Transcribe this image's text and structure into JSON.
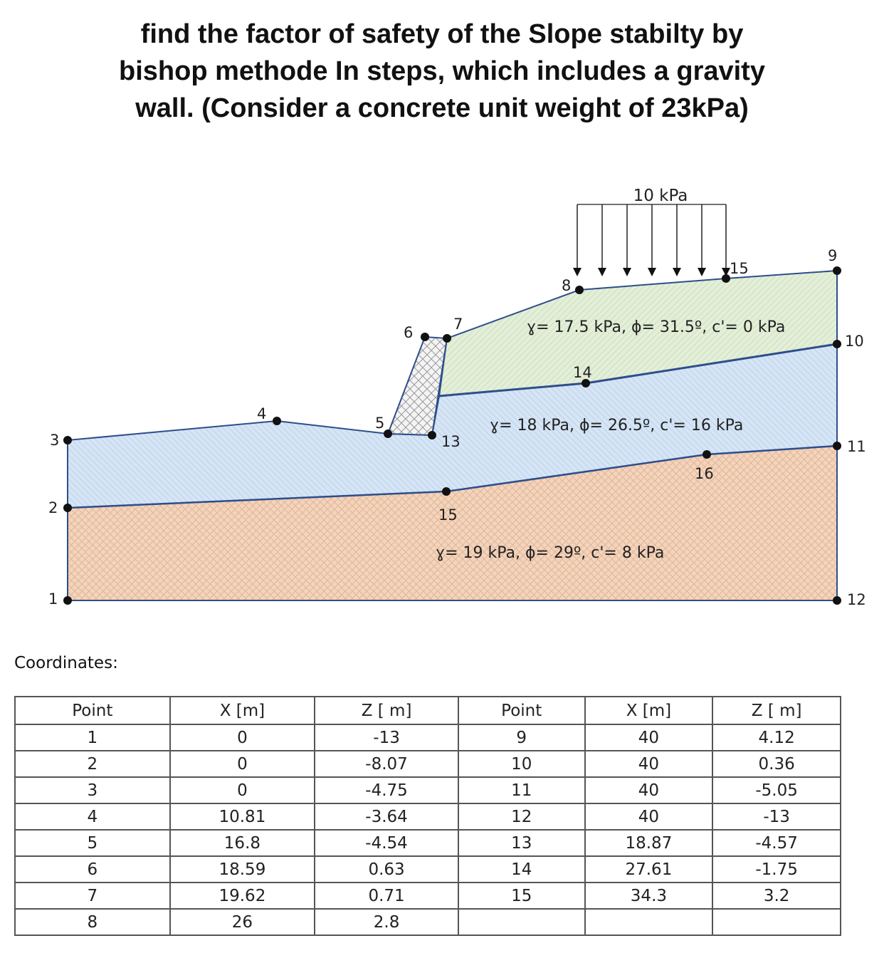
{
  "title": {
    "line1": "find the factor of safety of the Slope stabilty by",
    "line2": "bishop methode In steps, which includes a gravity",
    "line3": "wall. (Consider a concrete unit weight of 23kPa)"
  },
  "diagram": {
    "load_label": "10 kPa",
    "layer_top_label": "ɣ= 17.5 kPa, ϕ= 31.5º, c'= 0 kPa",
    "layer_middle_label": "ɣ= 18 kPa, ϕ= 26.5º, c'= 16 kPa",
    "layer_bottom_label": "ɣ= 19 kPa, ϕ= 29º, c'= 8 kPa",
    "colors": {
      "top_layer": "#e3efd8",
      "middle_layer": "#d6e5f5",
      "bottom_layer": "#f3d4bd",
      "wall": "#f2f2f2",
      "boundary": "#2e4e8c"
    },
    "points": [
      {
        "id": "p1",
        "label": "1"
      },
      {
        "id": "p2",
        "label": "2"
      },
      {
        "id": "p3",
        "label": "3"
      },
      {
        "id": "p4",
        "label": "4"
      },
      {
        "id": "p5",
        "label": "5"
      },
      {
        "id": "p6",
        "label": "6"
      },
      {
        "id": "p7",
        "label": "7"
      },
      {
        "id": "p8",
        "label": "8"
      },
      {
        "id": "p9",
        "label": "9"
      },
      {
        "id": "p10",
        "label": "10"
      },
      {
        "id": "p11",
        "label": "11"
      },
      {
        "id": "p12",
        "label": "12"
      },
      {
        "id": "p13",
        "label": "13"
      },
      {
        "id": "p14",
        "label": "14"
      },
      {
        "id": "p15a",
        "label": "15"
      },
      {
        "id": "p15b",
        "label": "15"
      },
      {
        "id": "p16",
        "label": "16"
      }
    ]
  },
  "coordinates_label": "Coordinates:",
  "table": {
    "headers": [
      "Point",
      "X [m]",
      "Z [ m]",
      "Point",
      "X [m]",
      "Z [ m]"
    ],
    "rows": [
      [
        "1",
        "0",
        "-13",
        "9",
        "40",
        "4.12"
      ],
      [
        "2",
        "0",
        "-8.07",
        "10",
        "40",
        "0.36"
      ],
      [
        "3",
        "0",
        "-4.75",
        "11",
        "40",
        "-5.05"
      ],
      [
        "4",
        "10.81",
        "-3.64",
        "12",
        "40",
        "-13"
      ],
      [
        "5",
        "16.8",
        "-4.54",
        "13",
        "18.87",
        "-4.57"
      ],
      [
        "6",
        "18.59",
        "0.63",
        "14",
        "27.61",
        "-1.75"
      ],
      [
        "7",
        "19.62",
        "0.71",
        "15",
        "34.3",
        "3.2"
      ],
      [
        "8",
        "26",
        "2.8",
        "",
        "",
        ""
      ]
    ]
  }
}
